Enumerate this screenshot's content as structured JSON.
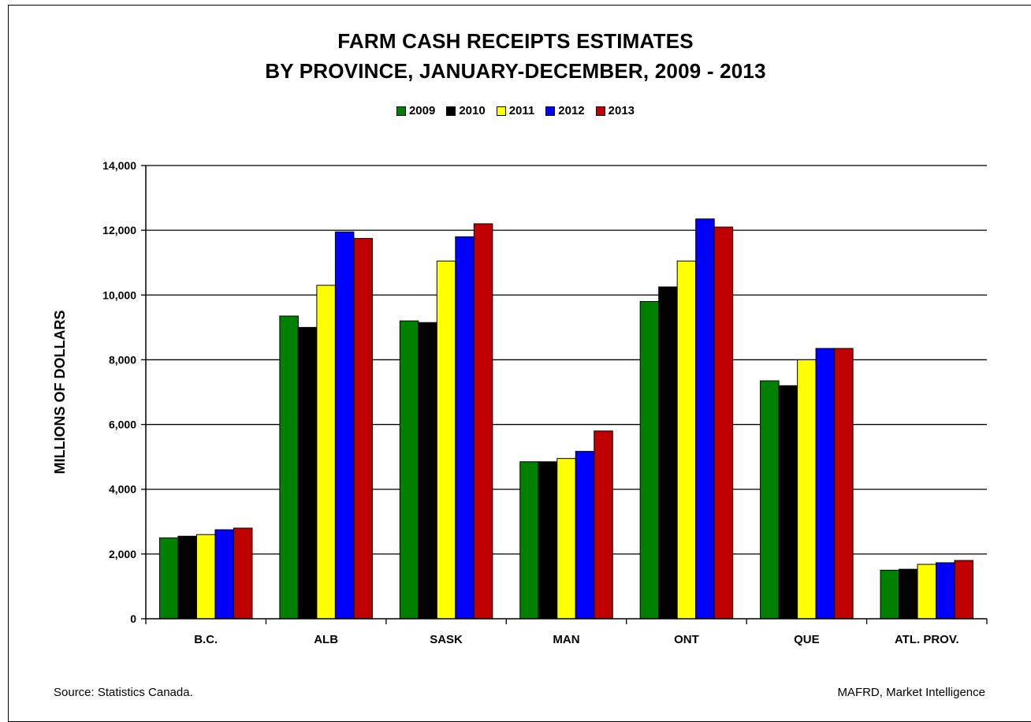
{
  "chart_data": {
    "type": "bar",
    "title": "FARM CASH RECEIPTS ESTIMATES",
    "subtitle": "BY PROVINCE, JANUARY-DECEMBER, 2009 - 2013",
    "ylabel": "MILLIONS OF DOLLARS",
    "xlabel": "",
    "ylim": [
      0,
      14000
    ],
    "yticks": [
      0,
      2000,
      4000,
      6000,
      8000,
      10000,
      12000,
      14000
    ],
    "ytick_labels": [
      "0",
      "2,000",
      "4,000",
      "6,000",
      "8,000",
      "10,000",
      "12,000",
      "14,000"
    ],
    "grid": true,
    "legend_position": "top-center",
    "categories": [
      "B.C.",
      "ALB",
      "SASK",
      "MAN",
      "ONT",
      "QUE",
      "ATL. PROV."
    ],
    "series": [
      {
        "name": "2009",
        "color": "#008000",
        "values": [
          2500,
          9350,
          9200,
          4850,
          9800,
          7350,
          1500
        ]
      },
      {
        "name": "2010",
        "color": "#000000",
        "values": [
          2550,
          9000,
          9150,
          4850,
          10250,
          7200,
          1530
        ]
      },
      {
        "name": "2011",
        "color": "#ffff00",
        "values": [
          2600,
          10300,
          11050,
          4950,
          11050,
          8000,
          1680
        ]
      },
      {
        "name": "2012",
        "color": "#0000ff",
        "values": [
          2750,
          11950,
          11800,
          5170,
          12350,
          8350,
          1730
        ]
      },
      {
        "name": "2013",
        "color": "#c00000",
        "values": [
          2800,
          11750,
          12200,
          5800,
          12100,
          8350,
          1800
        ]
      }
    ]
  },
  "footer": {
    "source": "Source:  Statistics Canada.",
    "credit": "MAFRD, Market Intelligence"
  }
}
